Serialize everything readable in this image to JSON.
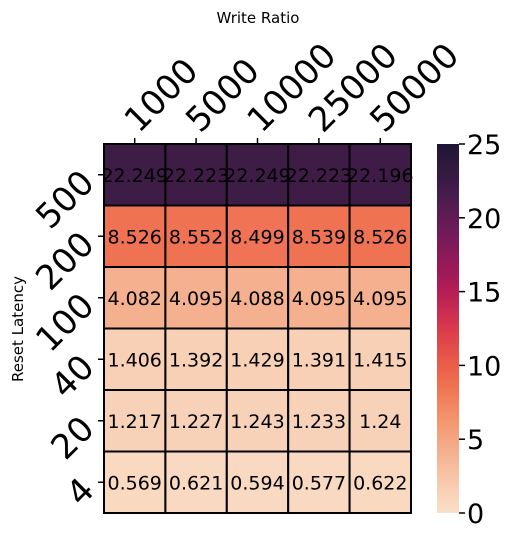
{
  "chart_data": {
    "type": "heatmap",
    "xlabel": "Write Ratio",
    "ylabel": "Reset Latency",
    "x_categories": [
      "1000",
      "5000",
      "10000",
      "25000",
      "50000"
    ],
    "y_categories": [
      "500",
      "200",
      "100",
      "40",
      "20",
      "4"
    ],
    "cell_labels": [
      [
        "22.249",
        "22.223",
        "22.249",
        "22.223",
        "22.196"
      ],
      [
        "8.526",
        "8.552",
        "8.499",
        "8.539",
        "8.526"
      ],
      [
        "4.082",
        "4.095",
        "4.088",
        "4.095",
        "4.095"
      ],
      [
        "1.406",
        "1.392",
        "1.429",
        "1.391",
        "1.415"
      ],
      [
        "1.217",
        "1.227",
        "1.243",
        "1.233",
        "1.24"
      ],
      [
        "0.569",
        "0.621",
        "0.594",
        "0.577",
        "0.622"
      ]
    ],
    "values": [
      [
        22.249,
        22.223,
        22.249,
        22.223,
        22.196
      ],
      [
        8.526,
        8.552,
        8.499,
        8.539,
        8.526
      ],
      [
        4.082,
        4.095,
        4.088,
        4.095,
        4.095
      ],
      [
        1.406,
        1.392,
        1.429,
        1.391,
        1.415
      ],
      [
        1.217,
        1.227,
        1.243,
        1.233,
        1.24
      ],
      [
        0.569,
        0.621,
        0.594,
        0.577,
        0.622
      ]
    ],
    "color_range": [
      0,
      25
    ],
    "colorbar_ticks": [
      "0",
      "5",
      "10",
      "15",
      "20",
      "25"
    ],
    "colormap": "rocket_r",
    "colors": {
      "low": "#fae0c9",
      "high": "#1f1633",
      "cell_border": "#000000"
    },
    "legend": "colorbar-right",
    "grid": false
  }
}
